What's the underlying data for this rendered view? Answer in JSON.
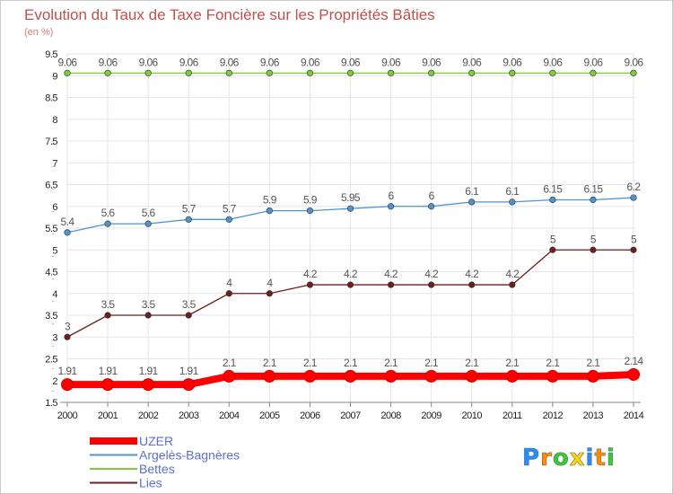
{
  "chart_data": {
    "type": "line",
    "title": "Evolution du Taux de Taxe Foncière sur les Propriétés Bâties",
    "subtitle": "(en %)",
    "xlabel": "",
    "ylabel": "",
    "x": [
      "2000",
      "2001",
      "2002",
      "2003",
      "2004",
      "2005",
      "2006",
      "2007",
      "2008",
      "2009",
      "2010",
      "2011",
      "2012",
      "2013",
      "2014"
    ],
    "ylim": [
      1.5,
      9.5
    ],
    "yticks": [
      "1.5",
      "2",
      "2.5",
      "3",
      "3.5",
      "4",
      "4.5",
      "5",
      "5.5",
      "6",
      "6.5",
      "7",
      "7.5",
      "8",
      "8.5",
      "9",
      "9.5"
    ],
    "grid": true,
    "legend_position": "bottom-left",
    "series": [
      {
        "name": "UZER",
        "color": "#ff0000",
        "values": [
          1.91,
          1.91,
          1.91,
          1.91,
          2.1,
          2.1,
          2.1,
          2.1,
          2.1,
          2.1,
          2.1,
          2.1,
          2.1,
          2.1,
          2.14
        ],
        "labels": [
          "1.91",
          "1.91",
          "1.91",
          "1.91",
          "2.1",
          "2.1",
          "2.1",
          "2.1",
          "2.1",
          "2.1",
          "2.1",
          "2.1",
          "2.1",
          "2.1",
          "2.14"
        ]
      },
      {
        "name": "Argelès-Bagnères",
        "color": "#4f94cd",
        "values": [
          5.4,
          5.6,
          5.6,
          5.7,
          5.7,
          5.9,
          5.9,
          5.95,
          6,
          6,
          6.1,
          6.1,
          6.15,
          6.15,
          6.2
        ],
        "labels": [
          "5.4",
          "5.6",
          "5.6",
          "5.7",
          "5.7",
          "5.9",
          "5.9",
          "5.95",
          "6",
          "6",
          "6.1",
          "6.1",
          "6.15",
          "6.15",
          "6.2"
        ]
      },
      {
        "name": "Bettes",
        "color": "#7ccd3c",
        "values": [
          9.06,
          9.06,
          9.06,
          9.06,
          9.06,
          9.06,
          9.06,
          9.06,
          9.06,
          9.06,
          9.06,
          9.06,
          9.06,
          9.06,
          9.06
        ],
        "labels": [
          "9.06",
          "9.06",
          "9.06",
          "9.06",
          "9.06",
          "9.06",
          "9.06",
          "9.06",
          "9.06",
          "9.06",
          "9.06",
          "9.06",
          "9.06",
          "9.06",
          "9.06"
        ]
      },
      {
        "name": "Lies",
        "color": "#6b1f1f",
        "values": [
          3,
          3.5,
          3.5,
          3.5,
          4,
          4,
          4.2,
          4.2,
          4.2,
          4.2,
          4.2,
          4.2,
          5,
          5,
          5
        ],
        "labels": [
          "3",
          "3.5",
          "3.5",
          "3.5",
          "4",
          "4",
          "4.2",
          "4.2",
          "4.2",
          "4.2",
          "4.2",
          "4.2",
          "5",
          "5",
          "5"
        ]
      }
    ]
  },
  "branding": {
    "logo_text": "Proxiti",
    "logo_colors": [
      "#1e90ff",
      "#ff8c00",
      "#32cd32",
      "#ffd700",
      "#1e90ff",
      "#ff8c00",
      "#32cd32"
    ]
  },
  "colors": {
    "title": "#c0504d",
    "subtitle": "#d97a76",
    "legend_text": "#5a6fd6",
    "axis": "#888888",
    "tick_text": "#222222",
    "label_text": "#555555"
  }
}
